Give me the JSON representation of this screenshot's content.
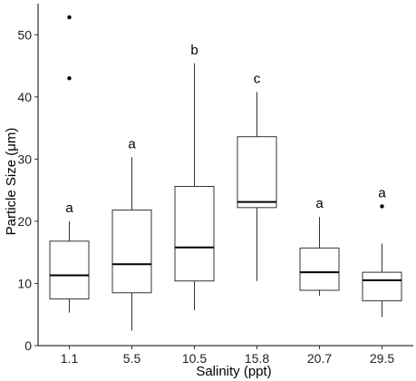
{
  "chart_data": {
    "type": "box",
    "xlabel": "Salinity (ppt)",
    "ylabel": "Particle Size (μm)",
    "ylim": [
      0,
      55
    ],
    "yticks": [
      0,
      10,
      20,
      30,
      40,
      50
    ],
    "categories": [
      "1.1",
      "5.5",
      "10.5",
      "15.8",
      "20.7",
      "29.5"
    ],
    "grid": false,
    "boxes": [
      {
        "category": "1.1",
        "whisker_low": 5.3,
        "q1": 7.5,
        "median": 11.3,
        "q3": 16.8,
        "whisker_high": 20.0,
        "outliers": [
          43.0,
          52.8
        ],
        "letter": "a"
      },
      {
        "category": "5.5",
        "whisker_low": 2.4,
        "q1": 8.5,
        "median": 13.1,
        "q3": 21.8,
        "whisker_high": 30.3,
        "outliers": [],
        "letter": "a"
      },
      {
        "category": "10.5",
        "whisker_low": 5.7,
        "q1": 10.4,
        "median": 15.8,
        "q3": 25.6,
        "whisker_high": 45.4,
        "outliers": [],
        "letter": "b"
      },
      {
        "category": "15.8",
        "whisker_low": 10.4,
        "q1": 22.2,
        "median": 23.1,
        "q3": 33.6,
        "whisker_high": 40.8,
        "outliers": [],
        "letter": "c"
      },
      {
        "category": "20.7",
        "whisker_low": 8.0,
        "q1": 8.9,
        "median": 11.8,
        "q3": 15.7,
        "whisker_high": 20.7,
        "outliers": [],
        "letter": "a"
      },
      {
        "category": "29.5",
        "whisker_low": 4.6,
        "q1": 7.2,
        "median": 10.5,
        "q3": 11.8,
        "whisker_high": 16.4,
        "outliers": [
          22.4
        ],
        "letter": "a"
      }
    ]
  }
}
